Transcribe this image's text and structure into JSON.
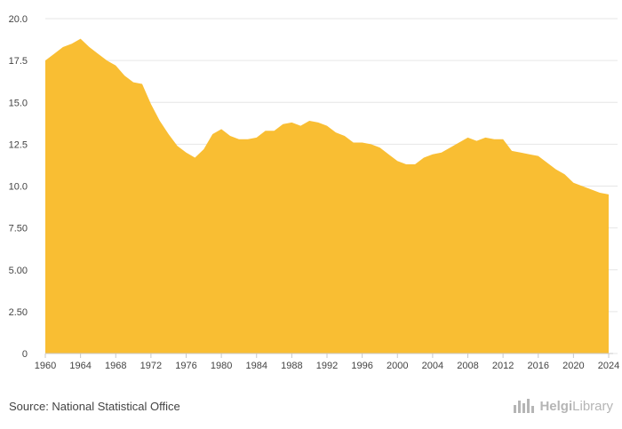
{
  "chart_data": {
    "type": "area",
    "title": "",
    "xlabel": "",
    "ylabel": "",
    "color": "#f9be33",
    "xlim": [
      1960,
      2024
    ],
    "ylim": [
      0,
      20
    ],
    "x_ticks": [
      "1960",
      "1964",
      "1968",
      "1972",
      "1976",
      "1980",
      "1984",
      "1988",
      "1992",
      "1996",
      "2000",
      "2004",
      "2008",
      "2012",
      "2016",
      "2020",
      "2024"
    ],
    "y_ticks": [
      "0",
      "2.50",
      "5.00",
      "7.50",
      "10.0",
      "12.5",
      "15.0",
      "17.5",
      "20.0"
    ],
    "grid": true,
    "x": [
      1960,
      1961,
      1962,
      1963,
      1964,
      1965,
      1966,
      1967,
      1968,
      1969,
      1970,
      1971,
      1972,
      1973,
      1974,
      1975,
      1976,
      1977,
      1978,
      1979,
      1980,
      1981,
      1982,
      1983,
      1984,
      1985,
      1986,
      1987,
      1988,
      1989,
      1990,
      1991,
      1992,
      1993,
      1994,
      1995,
      1996,
      1997,
      1998,
      1999,
      2000,
      2001,
      2002,
      2003,
      2004,
      2005,
      2006,
      2007,
      2008,
      2009,
      2010,
      2011,
      2012,
      2013,
      2014,
      2015,
      2016,
      2017,
      2018,
      2019,
      2020,
      2021,
      2022,
      2023,
      2024
    ],
    "values": [
      17.5,
      17.9,
      18.3,
      18.5,
      18.8,
      18.3,
      17.9,
      17.5,
      17.2,
      16.6,
      16.2,
      16.1,
      14.9,
      13.9,
      13.1,
      12.4,
      12.0,
      11.7,
      12.2,
      13.1,
      13.4,
      13.0,
      12.8,
      12.8,
      12.9,
      13.3,
      13.3,
      13.7,
      13.8,
      13.6,
      13.9,
      13.8,
      13.6,
      13.2,
      13.0,
      12.6,
      12.6,
      12.5,
      12.3,
      11.9,
      11.5,
      11.3,
      11.3,
      11.7,
      11.9,
      12.0,
      12.3,
      12.6,
      12.9,
      12.7,
      12.9,
      12.8,
      12.8,
      12.1,
      12.0,
      11.9,
      11.8,
      11.4,
      11.0,
      10.7,
      10.2,
      10.0,
      9.8,
      9.6,
      9.5
    ]
  },
  "footer": {
    "source": "Source: National Statistical Office",
    "logo_icon": "helgi-library-logo-icon",
    "logo_part1": "Helgi",
    "logo_part2": "Library"
  }
}
